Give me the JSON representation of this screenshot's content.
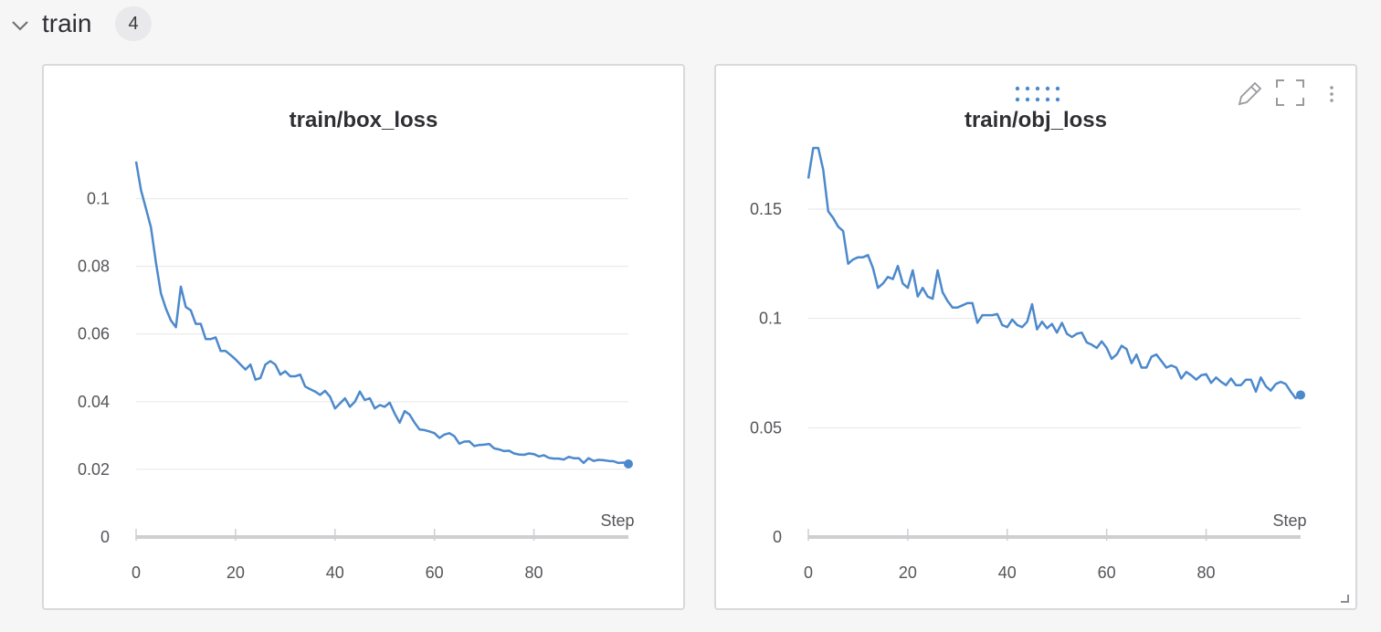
{
  "section": {
    "title": "train",
    "count": "4"
  },
  "icons": {
    "collapse": "chevron-down-icon",
    "drag": "drag-handle-icon",
    "edit": "pencil-icon",
    "fullscreen": "fullscreen-icon",
    "menu": "more-vertical-icon",
    "resize": "resize-handle-icon"
  },
  "colors": {
    "line": "#4c89cc",
    "grid": "#e6e6e8",
    "axis": "#cfcfd2"
  },
  "chart_data": [
    {
      "type": "line",
      "title": "train/box_loss",
      "xlabel": "Step",
      "ylabel": "",
      "xlim": [
        0,
        99
      ],
      "ylim": [
        0,
        0.115
      ],
      "x_ticks": [
        "0",
        "20",
        "40",
        "60",
        "80"
      ],
      "y_ticks": [
        "0",
        "0.02",
        "0.04",
        "0.06",
        "0.08",
        "0.1"
      ],
      "grid": true,
      "x": [
        0,
        1,
        2,
        3,
        4,
        5,
        6,
        7,
        8,
        9,
        10,
        11,
        12,
        13,
        14,
        15,
        16,
        17,
        18,
        19,
        20,
        21,
        22,
        23,
        24,
        25,
        26,
        27,
        28,
        29,
        30,
        31,
        32,
        33,
        34,
        35,
        36,
        37,
        38,
        39,
        40,
        41,
        42,
        43,
        44,
        45,
        46,
        47,
        48,
        49,
        50,
        51,
        52,
        53,
        54,
        55,
        56,
        57,
        58,
        59,
        60,
        61,
        62,
        63,
        64,
        65,
        66,
        67,
        68,
        69,
        70,
        71,
        72,
        73,
        74,
        75,
        76,
        77,
        78,
        79,
        80,
        81,
        82,
        83,
        84,
        85,
        86,
        87,
        88,
        89,
        90,
        91,
        92,
        93,
        94,
        95,
        96,
        97,
        98,
        99
      ],
      "series": [
        {
          "values": [
            0.111,
            0.1025,
            0.097,
            0.0915,
            0.081,
            0.072,
            0.0675,
            0.064,
            0.062,
            0.074,
            0.068,
            0.067,
            0.063,
            0.063,
            0.0585,
            0.0585,
            0.059,
            0.055,
            0.055,
            0.0538,
            0.0525,
            0.051,
            0.0495,
            0.051,
            0.0465,
            0.047,
            0.051,
            0.052,
            0.051,
            0.048,
            0.049,
            0.0475,
            0.0475,
            0.048,
            0.0445,
            0.0437,
            0.043,
            0.042,
            0.0432,
            0.0415,
            0.038,
            0.0395,
            0.041,
            0.0385,
            0.04,
            0.043,
            0.0405,
            0.041,
            0.038,
            0.039,
            0.0385,
            0.0397,
            0.0365,
            0.0338,
            0.0372,
            0.0362,
            0.0338,
            0.0318,
            0.0316,
            0.0312,
            0.0307,
            0.0293,
            0.0303,
            0.0307,
            0.0298,
            0.0276,
            0.0282,
            0.0283,
            0.0269,
            0.0272,
            0.0273,
            0.0275,
            0.0262,
            0.0259,
            0.0254,
            0.0255,
            0.0247,
            0.0244,
            0.0243,
            0.0247,
            0.0245,
            0.0238,
            0.0242,
            0.0234,
            0.0232,
            0.0232,
            0.0229,
            0.0237,
            0.0233,
            0.0233,
            0.0219,
            0.0233,
            0.0225,
            0.0228,
            0.0227,
            0.0225,
            0.0224,
            0.0219,
            0.022,
            0.0216
          ]
        }
      ]
    },
    {
      "type": "line",
      "title": "train/obj_loss",
      "xlabel": "Step",
      "ylabel": "",
      "xlim": [
        0,
        99
      ],
      "ylim": [
        0,
        0.178
      ],
      "x_ticks": [
        "0",
        "20",
        "40",
        "60",
        "80"
      ],
      "y_ticks": [
        "0",
        "0.05",
        "0.1",
        "0.15"
      ],
      "grid": true,
      "x": [
        0,
        1,
        2,
        3,
        4,
        5,
        6,
        7,
        8,
        9,
        10,
        11,
        12,
        13,
        14,
        15,
        16,
        17,
        18,
        19,
        20,
        21,
        22,
        23,
        24,
        25,
        26,
        27,
        28,
        29,
        30,
        31,
        32,
        33,
        34,
        35,
        36,
        37,
        38,
        39,
        40,
        41,
        42,
        43,
        44,
        45,
        46,
        47,
        48,
        49,
        50,
        51,
        52,
        53,
        54,
        55,
        56,
        57,
        58,
        59,
        60,
        61,
        62,
        63,
        64,
        65,
        66,
        67,
        68,
        69,
        70,
        71,
        72,
        73,
        74,
        75,
        76,
        77,
        78,
        79,
        80,
        81,
        82,
        83,
        84,
        85,
        86,
        87,
        88,
        89,
        90,
        91,
        92,
        93,
        94,
        95,
        96,
        97,
        98,
        99
      ],
      "series": [
        {
          "values": [
            0.164,
            0.178,
            0.178,
            0.168,
            0.149,
            0.146,
            0.142,
            0.14,
            0.125,
            0.127,
            0.128,
            0.128,
            0.129,
            0.123,
            0.114,
            0.116,
            0.119,
            0.118,
            0.124,
            0.116,
            0.114,
            0.122,
            0.11,
            0.114,
            0.11,
            0.109,
            0.122,
            0.112,
            0.108,
            0.105,
            0.105,
            0.106,
            0.107,
            0.107,
            0.098,
            0.1015,
            0.1015,
            0.1015,
            0.102,
            0.097,
            0.096,
            0.0995,
            0.097,
            0.096,
            0.0985,
            0.1065,
            0.095,
            0.0985,
            0.0955,
            0.0975,
            0.0935,
            0.098,
            0.093,
            0.0915,
            0.093,
            0.0935,
            0.089,
            0.088,
            0.0865,
            0.0895,
            0.0865,
            0.0815,
            0.0835,
            0.0875,
            0.086,
            0.0795,
            0.0835,
            0.0775,
            0.0775,
            0.0825,
            0.0835,
            0.0805,
            0.0775,
            0.0785,
            0.0775,
            0.0725,
            0.0755,
            0.074,
            0.072,
            0.074,
            0.0745,
            0.0705,
            0.073,
            0.071,
            0.0695,
            0.0725,
            0.0695,
            0.0695,
            0.072,
            0.072,
            0.0665,
            0.073,
            0.069,
            0.067,
            0.07,
            0.071,
            0.07,
            0.0665,
            0.0635,
            0.065
          ]
        }
      ]
    }
  ]
}
